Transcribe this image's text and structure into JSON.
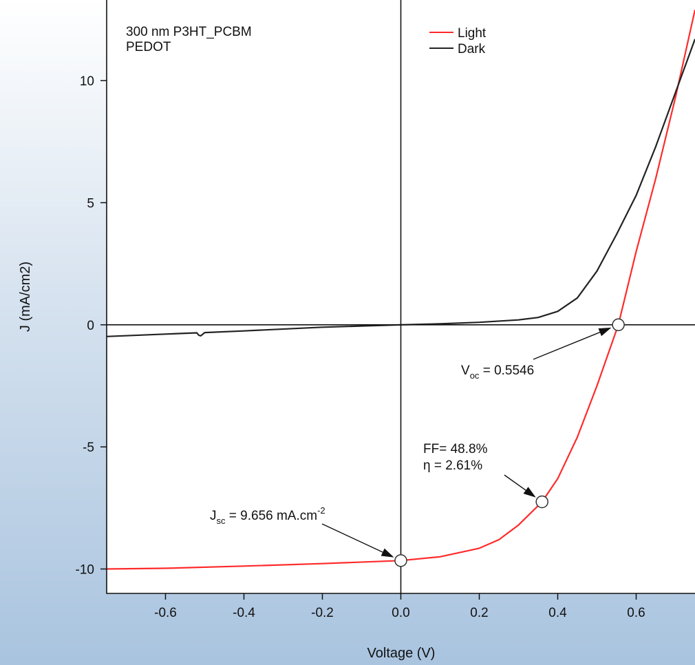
{
  "chart_data": {
    "type": "line",
    "title": "",
    "xlabel": "Voltage (V)",
    "ylabel": "J (mA/cm2)",
    "xlim": [
      -0.75,
      0.75
    ],
    "ylim": [
      -11,
      13.3
    ],
    "x_ticks": [
      -0.6,
      -0.4,
      -0.2,
      0.0,
      0.2,
      0.4,
      0.6
    ],
    "x_tick_labels": [
      "-0.6",
      "-0.4",
      "-0.2",
      "0.0",
      "0.2",
      "0.4",
      "0.6"
    ],
    "y_ticks": [
      -10,
      -5,
      0,
      5,
      10
    ],
    "y_tick_labels": [
      "-10",
      "-5",
      "0",
      "5",
      "10"
    ],
    "grid": false,
    "legend_position": "top-center",
    "series": [
      {
        "name": "Light",
        "color": "#ff2a2a",
        "x": [
          -0.75,
          -0.6,
          -0.4,
          -0.2,
          0.0,
          0.1,
          0.2,
          0.25,
          0.3,
          0.36,
          0.4,
          0.45,
          0.5,
          0.5546,
          0.6,
          0.65,
          0.7,
          0.75
        ],
        "y": [
          -10.0,
          -9.97,
          -9.88,
          -9.78,
          -9.656,
          -9.5,
          -9.15,
          -8.8,
          -8.2,
          -7.25,
          -6.3,
          -4.6,
          -2.5,
          0.0,
          3.0,
          6.0,
          9.3,
          12.9
        ]
      },
      {
        "name": "Dark",
        "color": "#222222",
        "x": [
          -0.75,
          -0.6,
          -0.52,
          -0.515,
          -0.51,
          -0.5,
          -0.4,
          -0.2,
          0.0,
          0.1,
          0.2,
          0.3,
          0.35,
          0.4,
          0.45,
          0.5,
          0.55,
          0.6,
          0.65,
          0.7,
          0.75
        ],
        "y": [
          -0.48,
          -0.38,
          -0.33,
          -0.43,
          -0.45,
          -0.32,
          -0.25,
          -0.1,
          0.0,
          0.04,
          0.1,
          0.2,
          0.3,
          0.55,
          1.1,
          2.2,
          3.7,
          5.3,
          7.3,
          9.5,
          11.7
        ]
      }
    ],
    "legend": [
      "Light",
      "Dark"
    ],
    "device_label_lines": [
      "300 nm P3HT_PCBM",
      "PEDOT"
    ],
    "annotations": {
      "voc": {
        "prefix": "V",
        "sub": "oc",
        "value": " = 0.5546",
        "x": 0.5546,
        "y": 0.0
      },
      "ff": {
        "line1": "FF= 48.8%",
        "line2": "η = 2.61%",
        "x": 0.36,
        "y": -7.25
      },
      "jsc": {
        "prefix": "J",
        "sub": "sc",
        "value": " = 9.656 mA.cm",
        "sup": "-2",
        "x": 0.0,
        "y": -9.656
      }
    }
  }
}
